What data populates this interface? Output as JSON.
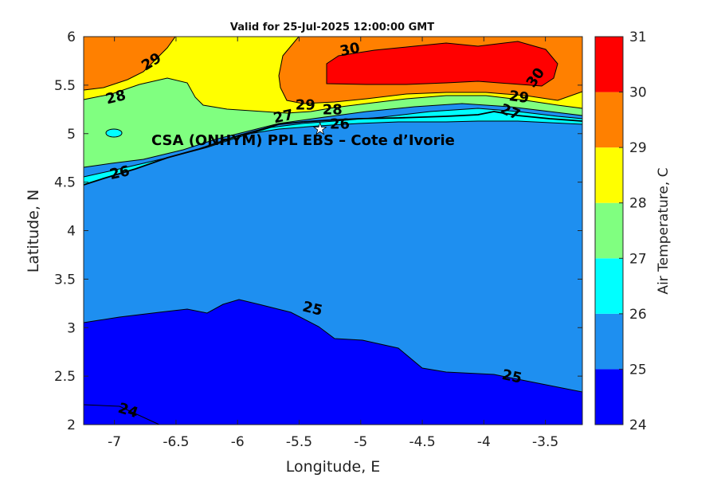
{
  "chart_data": {
    "type": "contourf",
    "title": "Valid for 25-Jul-2025 12:00:00 GMT",
    "xlabel": "Longitude, E",
    "ylabel": "Latitude, N",
    "xlim": [
      -7.25,
      -3.2
    ],
    "ylim": [
      2,
      6
    ],
    "xticks": [
      -7,
      -6.5,
      -6,
      -5.5,
      -5,
      -4.5,
      -4,
      -3.5
    ],
    "xtick_labels": [
      "-7",
      "-6.5",
      "-6",
      "-5.5",
      "-5",
      "-4.5",
      "-4",
      "-3.5"
    ],
    "yticks": [
      2,
      2.5,
      3,
      3.5,
      4,
      4.5,
      5,
      5.5,
      6
    ],
    "ytick_labels": [
      "2",
      "2.5",
      "3",
      "3.5",
      "4",
      "4.5",
      "5",
      "5.5",
      "6"
    ],
    "colorbar": {
      "label": "Air Temperature, C",
      "levels": [
        24,
        25,
        26,
        27,
        28,
        29,
        30,
        31
      ],
      "tick_labels": [
        "24",
        "25",
        "26",
        "27",
        "28",
        "29",
        "30",
        "31"
      ],
      "colors": [
        "#0000ff",
        "#1e8ff0",
        "#00ffff",
        "#80ff80",
        "#ffff00",
        "#ff8000",
        "#ff0000",
        "#800000"
      ]
    },
    "site": {
      "name": "CSA (ONHYM) PPL EBS  – Cote d’Ivorie",
      "lon": -5.33,
      "lat": 5.05
    },
    "contour_labels": [
      {
        "text": "24",
        "lon": -6.9,
        "lat": 2.1,
        "angle": 18
      },
      {
        "text": "25",
        "lon": -5.4,
        "lat": 3.15,
        "angle": 14
      },
      {
        "text": "25",
        "lon": -3.78,
        "lat": 2.45,
        "angle": 12
      },
      {
        "text": "26",
        "lon": -6.95,
        "lat": 4.55,
        "angle": -12
      },
      {
        "text": "26",
        "lon": -5.17,
        "lat": 5.05,
        "angle": 0
      },
      {
        "text": "27",
        "lon": -5.62,
        "lat": 5.13,
        "angle": -12
      },
      {
        "text": "27",
        "lon": -3.8,
        "lat": 5.18,
        "angle": 22
      },
      {
        "text": "28",
        "lon": -6.98,
        "lat": 5.33,
        "angle": -14
      },
      {
        "text": "28",
        "lon": -5.23,
        "lat": 5.2,
        "angle": 0
      },
      {
        "text": "29",
        "lon": -6.68,
        "lat": 5.7,
        "angle": -32
      },
      {
        "text": "29",
        "lon": -5.45,
        "lat": 5.25,
        "angle": 0
      },
      {
        "text": "29",
        "lon": -3.72,
        "lat": 5.33,
        "angle": 8
      },
      {
        "text": "30",
        "lon": -5.08,
        "lat": 5.82,
        "angle": -12
      },
      {
        "text": "30",
        "lon": -3.55,
        "lat": 5.55,
        "angle": -55
      }
    ]
  }
}
